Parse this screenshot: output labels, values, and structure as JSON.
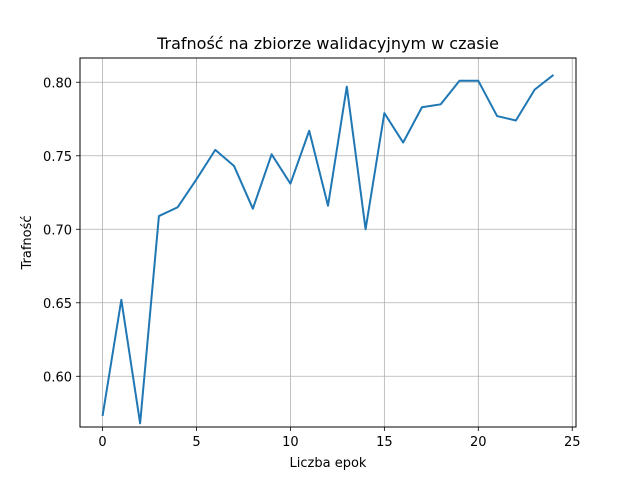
{
  "chart_data": {
    "type": "line",
    "title": "Trafność na zbiorze walidacyjnym w czasie",
    "xlabel": "Liczba epok",
    "ylabel": "Trafność",
    "xlim": [
      -1.2,
      25.2
    ],
    "ylim": [
      0.5655,
      0.8165
    ],
    "xticks": [
      0,
      5,
      10,
      15,
      20,
      25
    ],
    "xtick_labels": [
      "0",
      "5",
      "10",
      "15",
      "20",
      "25"
    ],
    "yticks": [
      0.6,
      0.65,
      0.7,
      0.75,
      0.8
    ],
    "ytick_labels": [
      "0.60",
      "0.65",
      "0.70",
      "0.75",
      "0.80"
    ],
    "grid": true,
    "series": [
      {
        "color": "#1f77b4",
        "x": [
          0,
          1,
          2,
          3,
          4,
          5,
          6,
          7,
          8,
          9,
          10,
          11,
          12,
          13,
          14,
          15,
          16,
          17,
          18,
          19,
          20,
          21,
          22,
          23,
          24
        ],
        "y": [
          0.573,
          0.652,
          0.568,
          0.709,
          0.715,
          0.734,
          0.754,
          0.743,
          0.714,
          0.751,
          0.731,
          0.767,
          0.716,
          0.797,
          0.7,
          0.779,
          0.759,
          0.783,
          0.785,
          0.801,
          0.801,
          0.777,
          0.774,
          0.795,
          0.805
        ]
      }
    ]
  }
}
